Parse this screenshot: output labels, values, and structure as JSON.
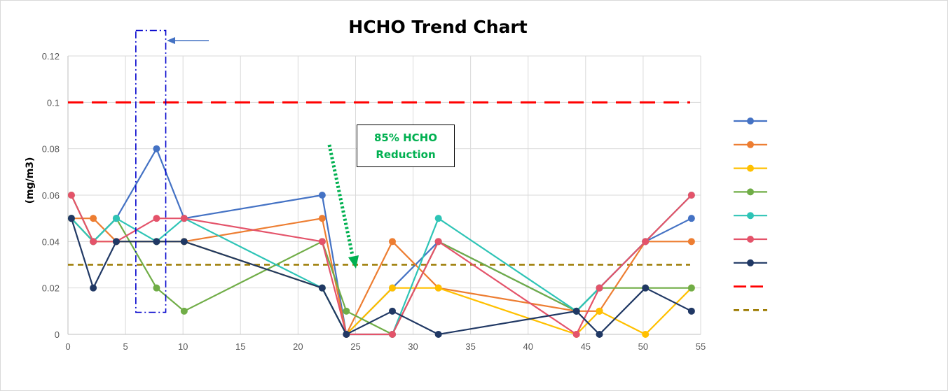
{
  "chart_data": {
    "type": "line",
    "title": "HCHO Trend Chart",
    "ylabel": "(mg/m3)",
    "xlabel": "",
    "xlim": [
      0,
      55
    ],
    "ylim": [
      0,
      0.12
    ],
    "xticks": [
      0,
      5,
      10,
      15,
      20,
      25,
      30,
      35,
      40,
      45,
      50,
      55
    ],
    "yticks": [
      "0",
      "0.02",
      "0.04",
      "0.06",
      "0.08",
      "0.1",
      "0.12"
    ],
    "yticks_values": [
      0,
      0.02,
      0.04,
      0.06,
      0.08,
      0.1,
      0.12
    ],
    "grid": true,
    "legend_position": "right",
    "annotation": "85% HCHO Reduction",
    "series": [
      {
        "name": "",
        "color": "#4472c4",
        "x": [
          0.3,
          2.2,
          4.2,
          7.7,
          10.1,
          22.1,
          24.2,
          28.2,
          32.2,
          44.2,
          46.2,
          50.2,
          54.2
        ],
        "y": [
          0.05,
          0.04,
          0.05,
          0.08,
          0.05,
          0.06,
          0.0,
          0.02,
          0.04,
          0.01,
          0.02,
          0.04,
          0.05
        ]
      },
      {
        "name": "",
        "color": "#ed7d31",
        "x": [
          0.3,
          2.2,
          4.2,
          7.7,
          10.1,
          22.1,
          24.2,
          28.2,
          32.2,
          44.2,
          46.2,
          50.2,
          54.2
        ],
        "y": [
          0.05,
          0.05,
          0.04,
          0.04,
          0.04,
          0.05,
          0.0,
          0.04,
          0.02,
          0.01,
          0.01,
          0.04,
          0.04
        ]
      },
      {
        "name": "",
        "color": "#ffc000",
        "x": [
          0.3,
          2.2,
          4.2,
          7.7,
          10.1,
          22.1,
          24.2,
          28.2,
          32.2,
          44.2,
          46.2,
          50.2,
          54.2
        ],
        "y": [
          0.05,
          0.04,
          0.04,
          0.04,
          0.04,
          0.02,
          0.0,
          0.02,
          0.02,
          0.0,
          0.01,
          0.0,
          0.02
        ]
      },
      {
        "name": "",
        "color": "#70ad47",
        "x": [
          0.3,
          2.2,
          4.2,
          7.7,
          10.1,
          22.1,
          24.2,
          28.2,
          32.2,
          44.2,
          46.2,
          50.2,
          54.2
        ],
        "y": [
          0.06,
          0.04,
          0.05,
          0.02,
          0.01,
          0.04,
          0.01,
          0.0,
          0.04,
          0.01,
          0.02,
          0.02,
          0.02
        ]
      },
      {
        "name": "",
        "color": "#2ec4b6",
        "x": [
          0.3,
          2.2,
          4.2,
          7.7,
          10.1,
          22.1,
          24.2,
          28.2,
          32.2,
          44.2,
          46.2,
          50.2,
          54.2
        ],
        "y": [
          0.05,
          0.04,
          0.05,
          0.04,
          0.05,
          0.02,
          0.0,
          0.0,
          0.05,
          0.01,
          0.02,
          0.04,
          0.06
        ]
      },
      {
        "name": "",
        "color": "#e4536a",
        "x": [
          0.3,
          2.2,
          4.2,
          7.7,
          10.1,
          22.1,
          24.2,
          28.2,
          32.2,
          44.2,
          46.2,
          50.2,
          54.2
        ],
        "y": [
          0.06,
          0.04,
          0.04,
          0.05,
          0.05,
          0.04,
          0.0,
          0.0,
          0.04,
          0.0,
          0.02,
          0.04,
          0.06
        ]
      },
      {
        "name": "",
        "color": "#203864",
        "x": [
          0.3,
          2.2,
          4.2,
          7.7,
          10.1,
          22.1,
          24.2,
          28.2,
          32.2,
          44.2,
          46.2,
          50.2,
          54.2
        ],
        "y": [
          0.05,
          0.02,
          0.04,
          0.04,
          0.04,
          0.02,
          0.0,
          0.01,
          0.0,
          0.01,
          0.0,
          0.02,
          0.01
        ]
      }
    ],
    "reference_lines": [
      {
        "name": "",
        "value": 0.1,
        "color": "#ff0000",
        "style": "long-dash"
      },
      {
        "name": "",
        "value": 0.03,
        "color": "#9c7a00",
        "style": "short-dash"
      }
    ],
    "highlight_window": {
      "x_from": 5.9,
      "x_to": 8.5,
      "y_from": 0.0095,
      "y_to": 0.131,
      "color": "#0000cc"
    }
  }
}
